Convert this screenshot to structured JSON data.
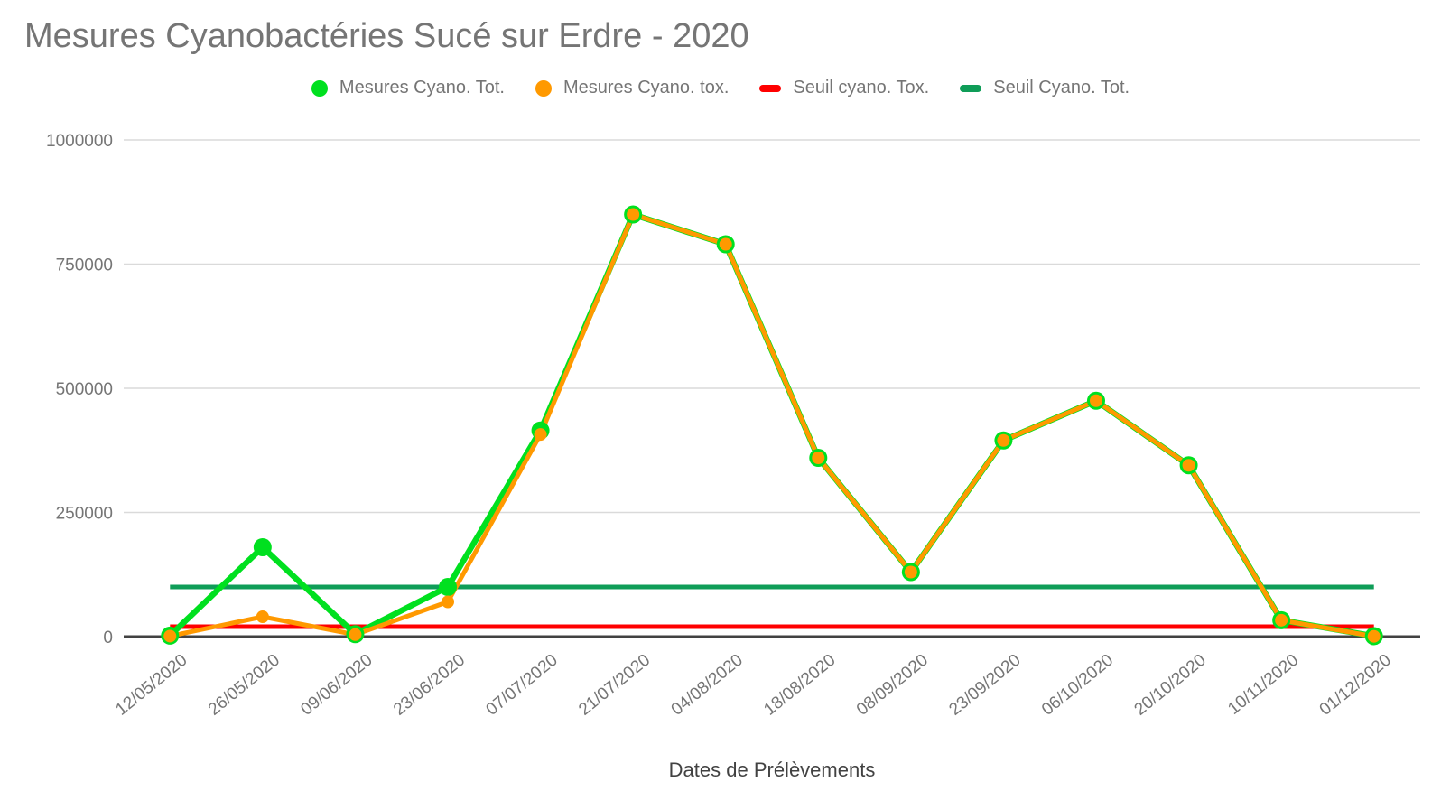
{
  "chart_data": {
    "type": "line",
    "title": "Mesures Cyanobactéries Sucé sur Erdre - 2020",
    "xlabel": "Dates de Prélèvements",
    "ylabel": "",
    "ylim": [
      0,
      1000000
    ],
    "y_ticks": [
      0,
      250000,
      500000,
      750000,
      1000000
    ],
    "grid": "horizontal",
    "legend_position": "top",
    "categories": [
      "12/05/2020",
      "26/05/2020",
      "09/06/2020",
      "23/06/2020",
      "07/07/2020",
      "21/07/2020",
      "04/08/2020",
      "18/08/2020",
      "08/09/2020",
      "23/09/2020",
      "06/10/2020",
      "20/10/2020",
      "10/11/2020",
      "01/12/2020"
    ],
    "series": [
      {
        "name": "Mesures Cyano. Tot.",
        "type": "line",
        "marker": "circle",
        "color": "#00e01f",
        "values": [
          2000,
          180000,
          5000,
          100000,
          415000,
          850000,
          790000,
          360000,
          130000,
          395000,
          475000,
          345000,
          33000,
          1000
        ]
      },
      {
        "name": "Mesures Cyano. tox.",
        "type": "line",
        "marker": "circle",
        "color": "#ff9900",
        "values": [
          1000,
          40000,
          4000,
          70000,
          407000,
          850000,
          790000,
          360000,
          130000,
          395000,
          475000,
          345000,
          33000,
          500
        ]
      },
      {
        "name": "Seuil cyano. Tox.",
        "type": "threshold",
        "marker": "dash",
        "color": "#ff0000",
        "value": 20000
      },
      {
        "name": "Seuil Cyano. Tot.",
        "type": "threshold",
        "marker": "dash",
        "color": "#0f9d58",
        "value": 100000
      }
    ]
  },
  "colors": {
    "title_text": "#757575",
    "legend_text": "#757575",
    "axis_text": "#757575",
    "axis_title_text": "#424242",
    "gridline": "#dadada",
    "axis_line": "#424242",
    "background": "#ffffff"
  }
}
